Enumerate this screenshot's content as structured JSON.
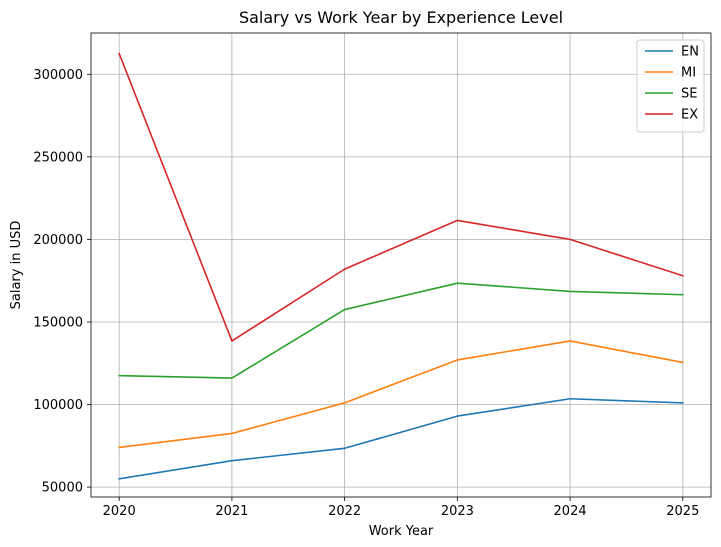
{
  "chart_data": {
    "type": "line",
    "title": "Salary vs Work Year by Experience Level",
    "xlabel": "Work Year",
    "ylabel": "Salary in USD",
    "x": [
      2020,
      2021,
      2022,
      2023,
      2024,
      2025
    ],
    "xticks": [
      "2020",
      "2021",
      "2022",
      "2023",
      "2024",
      "2025"
    ],
    "yticks": [
      "50000",
      "100000",
      "150000",
      "200000",
      "250000",
      "300000"
    ],
    "ytick_values": [
      50000,
      100000,
      150000,
      200000,
      250000,
      300000
    ],
    "xlim": [
      2019.75,
      2025.25
    ],
    "ylim": [
      44000,
      325000
    ],
    "grid": true,
    "legend_position": "top-right",
    "series": [
      {
        "name": "EN",
        "color": "#1f77b4",
        "values": [
          55000,
          66000,
          73500,
          93000,
          103500,
          101000
        ]
      },
      {
        "name": "MI",
        "color": "#ff7f0e",
        "values": [
          74000,
          82500,
          101000,
          127000,
          138500,
          125500
        ]
      },
      {
        "name": "SE",
        "color": "#2ca02c",
        "values": [
          117500,
          116000,
          157500,
          173500,
          168500,
          166500
        ]
      },
      {
        "name": "EX",
        "color": "#d62728",
        "values": [
          312500,
          138500,
          182000,
          211500,
          200000,
          178000
        ]
      }
    ]
  }
}
